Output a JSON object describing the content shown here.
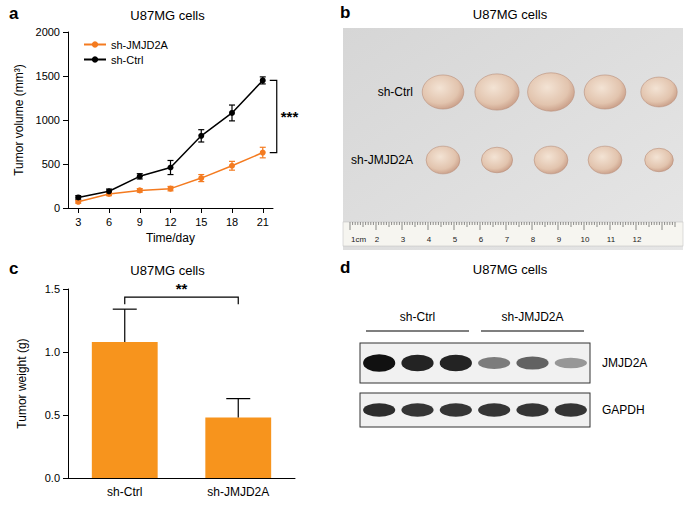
{
  "chart_data": [
    {
      "panel": "a",
      "type": "line",
      "title": "U87MG cells",
      "x_label": "Time/day",
      "y_label": "Tumor volume (mm³)",
      "x": [
        3,
        6,
        9,
        12,
        15,
        18,
        21
      ],
      "xlim": [
        2,
        22
      ],
      "xticks": [
        3,
        6,
        9,
        12,
        15,
        18,
        21
      ],
      "ylim": [
        0,
        2000
      ],
      "yticks": [
        0,
        500,
        1000,
        1500,
        2000
      ],
      "grid": false,
      "legend": "upper left",
      "series": [
        {
          "name": "sh-JMJD2A",
          "color": "#f47b20",
          "marker": "circle",
          "values": [
            70,
            160,
            200,
            220,
            340,
            480,
            630
          ],
          "errors": [
            15,
            20,
            20,
            25,
            40,
            50,
            60
          ]
        },
        {
          "name": "sh-Ctrl",
          "color": "#000000",
          "marker": "circle",
          "values": [
            120,
            190,
            360,
            460,
            820,
            1080,
            1450
          ],
          "errors": [
            20,
            25,
            30,
            80,
            70,
            90,
            40
          ]
        }
      ],
      "annotations": [
        {
          "text": "***",
          "between": [
            "sh-Ctrl",
            "sh-JMJD2A"
          ]
        }
      ]
    },
    {
      "panel": "c",
      "type": "bar",
      "title": "U87MG cells",
      "y_label": "Tumor weight (g)",
      "categories": [
        "sh-Ctrl",
        "sh-JMJD2A"
      ],
      "values": [
        1.08,
        0.48
      ],
      "errors": [
        0.26,
        0.15
      ],
      "color": "#f7941d",
      "ylim": [
        0,
        1.5
      ],
      "yticks": [
        {
          "value": 0,
          "label": "0.0"
        },
        0.5,
        {
          "value": 1,
          "label": "1.0"
        },
        1.5
      ],
      "grid": false,
      "annotations": [
        {
          "text": "**",
          "between": [
            "sh-Ctrl",
            "sh-JMJD2A"
          ]
        }
      ]
    }
  ],
  "photo": {
    "panel": "b",
    "title": "U87MG cells",
    "rows": [
      {
        "label": "sh-Ctrl",
        "tumor_sizes_cm": [
          1.6,
          1.7,
          1.8,
          1.6,
          1.4
        ]
      },
      {
        "label": "sh-JMJD2A",
        "tumor_sizes_cm": [
          1.3,
          1.2,
          1.3,
          1.3,
          1.1
        ]
      }
    ],
    "ruler_labels": [
      "1cm",
      "2",
      "3",
      "4",
      "5",
      "6",
      "7",
      "8",
      "9",
      "10",
      "11",
      "12"
    ]
  },
  "blot": {
    "panel": "d",
    "title": "U87MG cells",
    "groups": [
      {
        "label": "sh-Ctrl",
        "lanes": 3
      },
      {
        "label": "sh-JMJD2A",
        "lanes": 3
      }
    ],
    "bands": [
      {
        "label": "JMJD2A",
        "intensity": [
          1,
          0.9,
          0.9,
          0.4,
          0.55,
          0.25
        ]
      },
      {
        "label": "GAPDH",
        "intensity": [
          0.85,
          0.8,
          0.8,
          0.8,
          0.8,
          0.8
        ]
      }
    ]
  }
}
